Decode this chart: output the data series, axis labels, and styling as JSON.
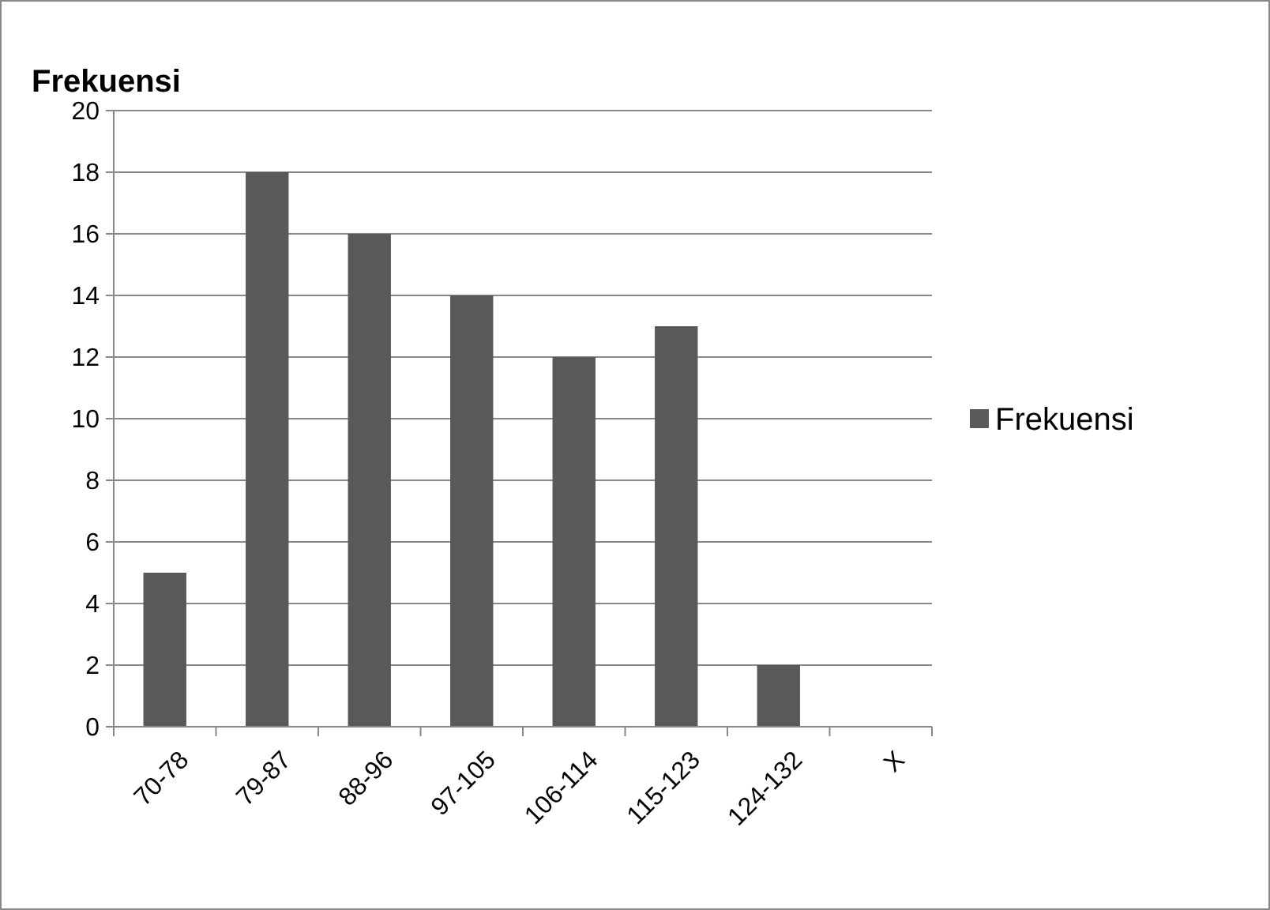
{
  "chart_data": {
    "type": "bar",
    "title": "Frekuensi",
    "categories": [
      "70-78",
      "79-87",
      "88-96",
      "97-105",
      "106-114",
      "115-123",
      "124-132",
      "X"
    ],
    "series": [
      {
        "name": "Frekuensi",
        "color": "#595959",
        "values": [
          5,
          18,
          16,
          14,
          12,
          13,
          2,
          null
        ]
      }
    ],
    "ylim": [
      0,
      20
    ],
    "yticks": [
      0,
      2,
      4,
      6,
      8,
      10,
      12,
      14,
      16,
      18,
      20
    ],
    "grid": "y",
    "legend": "right"
  }
}
